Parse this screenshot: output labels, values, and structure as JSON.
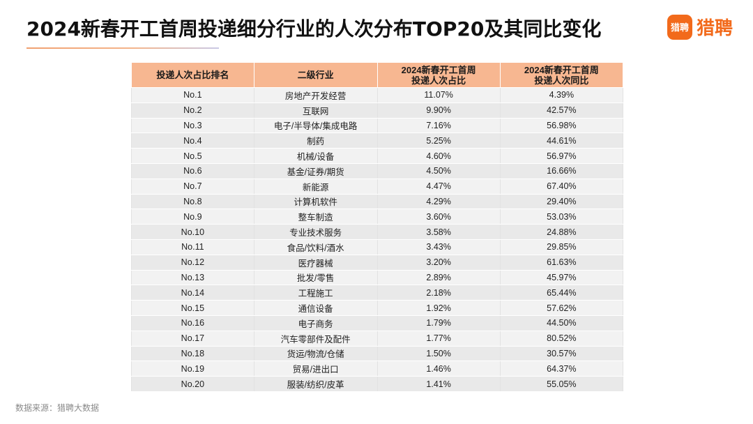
{
  "title": "2024新春开工首周投递细分行业的人次分布TOP20及其同比变化",
  "logo": {
    "mark": "猎聘",
    "text": "猎聘",
    "color": "#f26a1b"
  },
  "table": {
    "headers": [
      "投递人次占比排名",
      "二级行业",
      "2024新春开工首周\n投递人次占比",
      "2024新春开工首周\n投递人次同比"
    ],
    "rows": [
      {
        "rank": "No.1",
        "industry": "房地产开发经营",
        "share": "11.07%",
        "yoy": "4.39%"
      },
      {
        "rank": "No.2",
        "industry": "互联网",
        "share": "9.90%",
        "yoy": "42.57%"
      },
      {
        "rank": "No.3",
        "industry": "电子/半导体/集成电路",
        "share": "7.16%",
        "yoy": "56.98%"
      },
      {
        "rank": "No.4",
        "industry": "制药",
        "share": "5.25%",
        "yoy": "44.61%"
      },
      {
        "rank": "No.5",
        "industry": "机械/设备",
        "share": "4.60%",
        "yoy": "56.97%"
      },
      {
        "rank": "No.6",
        "industry": "基金/证券/期货",
        "share": "4.50%",
        "yoy": "16.66%"
      },
      {
        "rank": "No.7",
        "industry": "新能源",
        "share": "4.47%",
        "yoy": "67.40%"
      },
      {
        "rank": "No.8",
        "industry": "计算机软件",
        "share": "4.29%",
        "yoy": "29.40%"
      },
      {
        "rank": "No.9",
        "industry": "整车制造",
        "share": "3.60%",
        "yoy": "53.03%"
      },
      {
        "rank": "No.10",
        "industry": "专业技术服务",
        "share": "3.58%",
        "yoy": "24.88%"
      },
      {
        "rank": "No.11",
        "industry": "食品/饮料/酒水",
        "share": "3.43%",
        "yoy": "29.85%"
      },
      {
        "rank": "No.12",
        "industry": "医疗器械",
        "share": "3.20%",
        "yoy": "61.63%"
      },
      {
        "rank": "No.13",
        "industry": "批发/零售",
        "share": "2.89%",
        "yoy": "45.97%"
      },
      {
        "rank": "No.14",
        "industry": "工程施工",
        "share": "2.18%",
        "yoy": "65.44%"
      },
      {
        "rank": "No.15",
        "industry": "通信设备",
        "share": "1.92%",
        "yoy": "57.62%"
      },
      {
        "rank": "No.16",
        "industry": "电子商务",
        "share": "1.79%",
        "yoy": "44.50%"
      },
      {
        "rank": "No.17",
        "industry": "汽车零部件及配件",
        "share": "1.77%",
        "yoy": "80.52%"
      },
      {
        "rank": "No.18",
        "industry": "货运/物流/仓储",
        "share": "1.50%",
        "yoy": "30.57%"
      },
      {
        "rank": "No.19",
        "industry": "贸易/进出口",
        "share": "1.46%",
        "yoy": "64.37%"
      },
      {
        "rank": "No.20",
        "industry": "服装/纺织/皮革",
        "share": "1.41%",
        "yoy": "55.05%"
      }
    ]
  },
  "source": "数据来源：猎聘大数据",
  "colors": {
    "header_bg": "#f7b791",
    "accent": "#f26a1b"
  }
}
